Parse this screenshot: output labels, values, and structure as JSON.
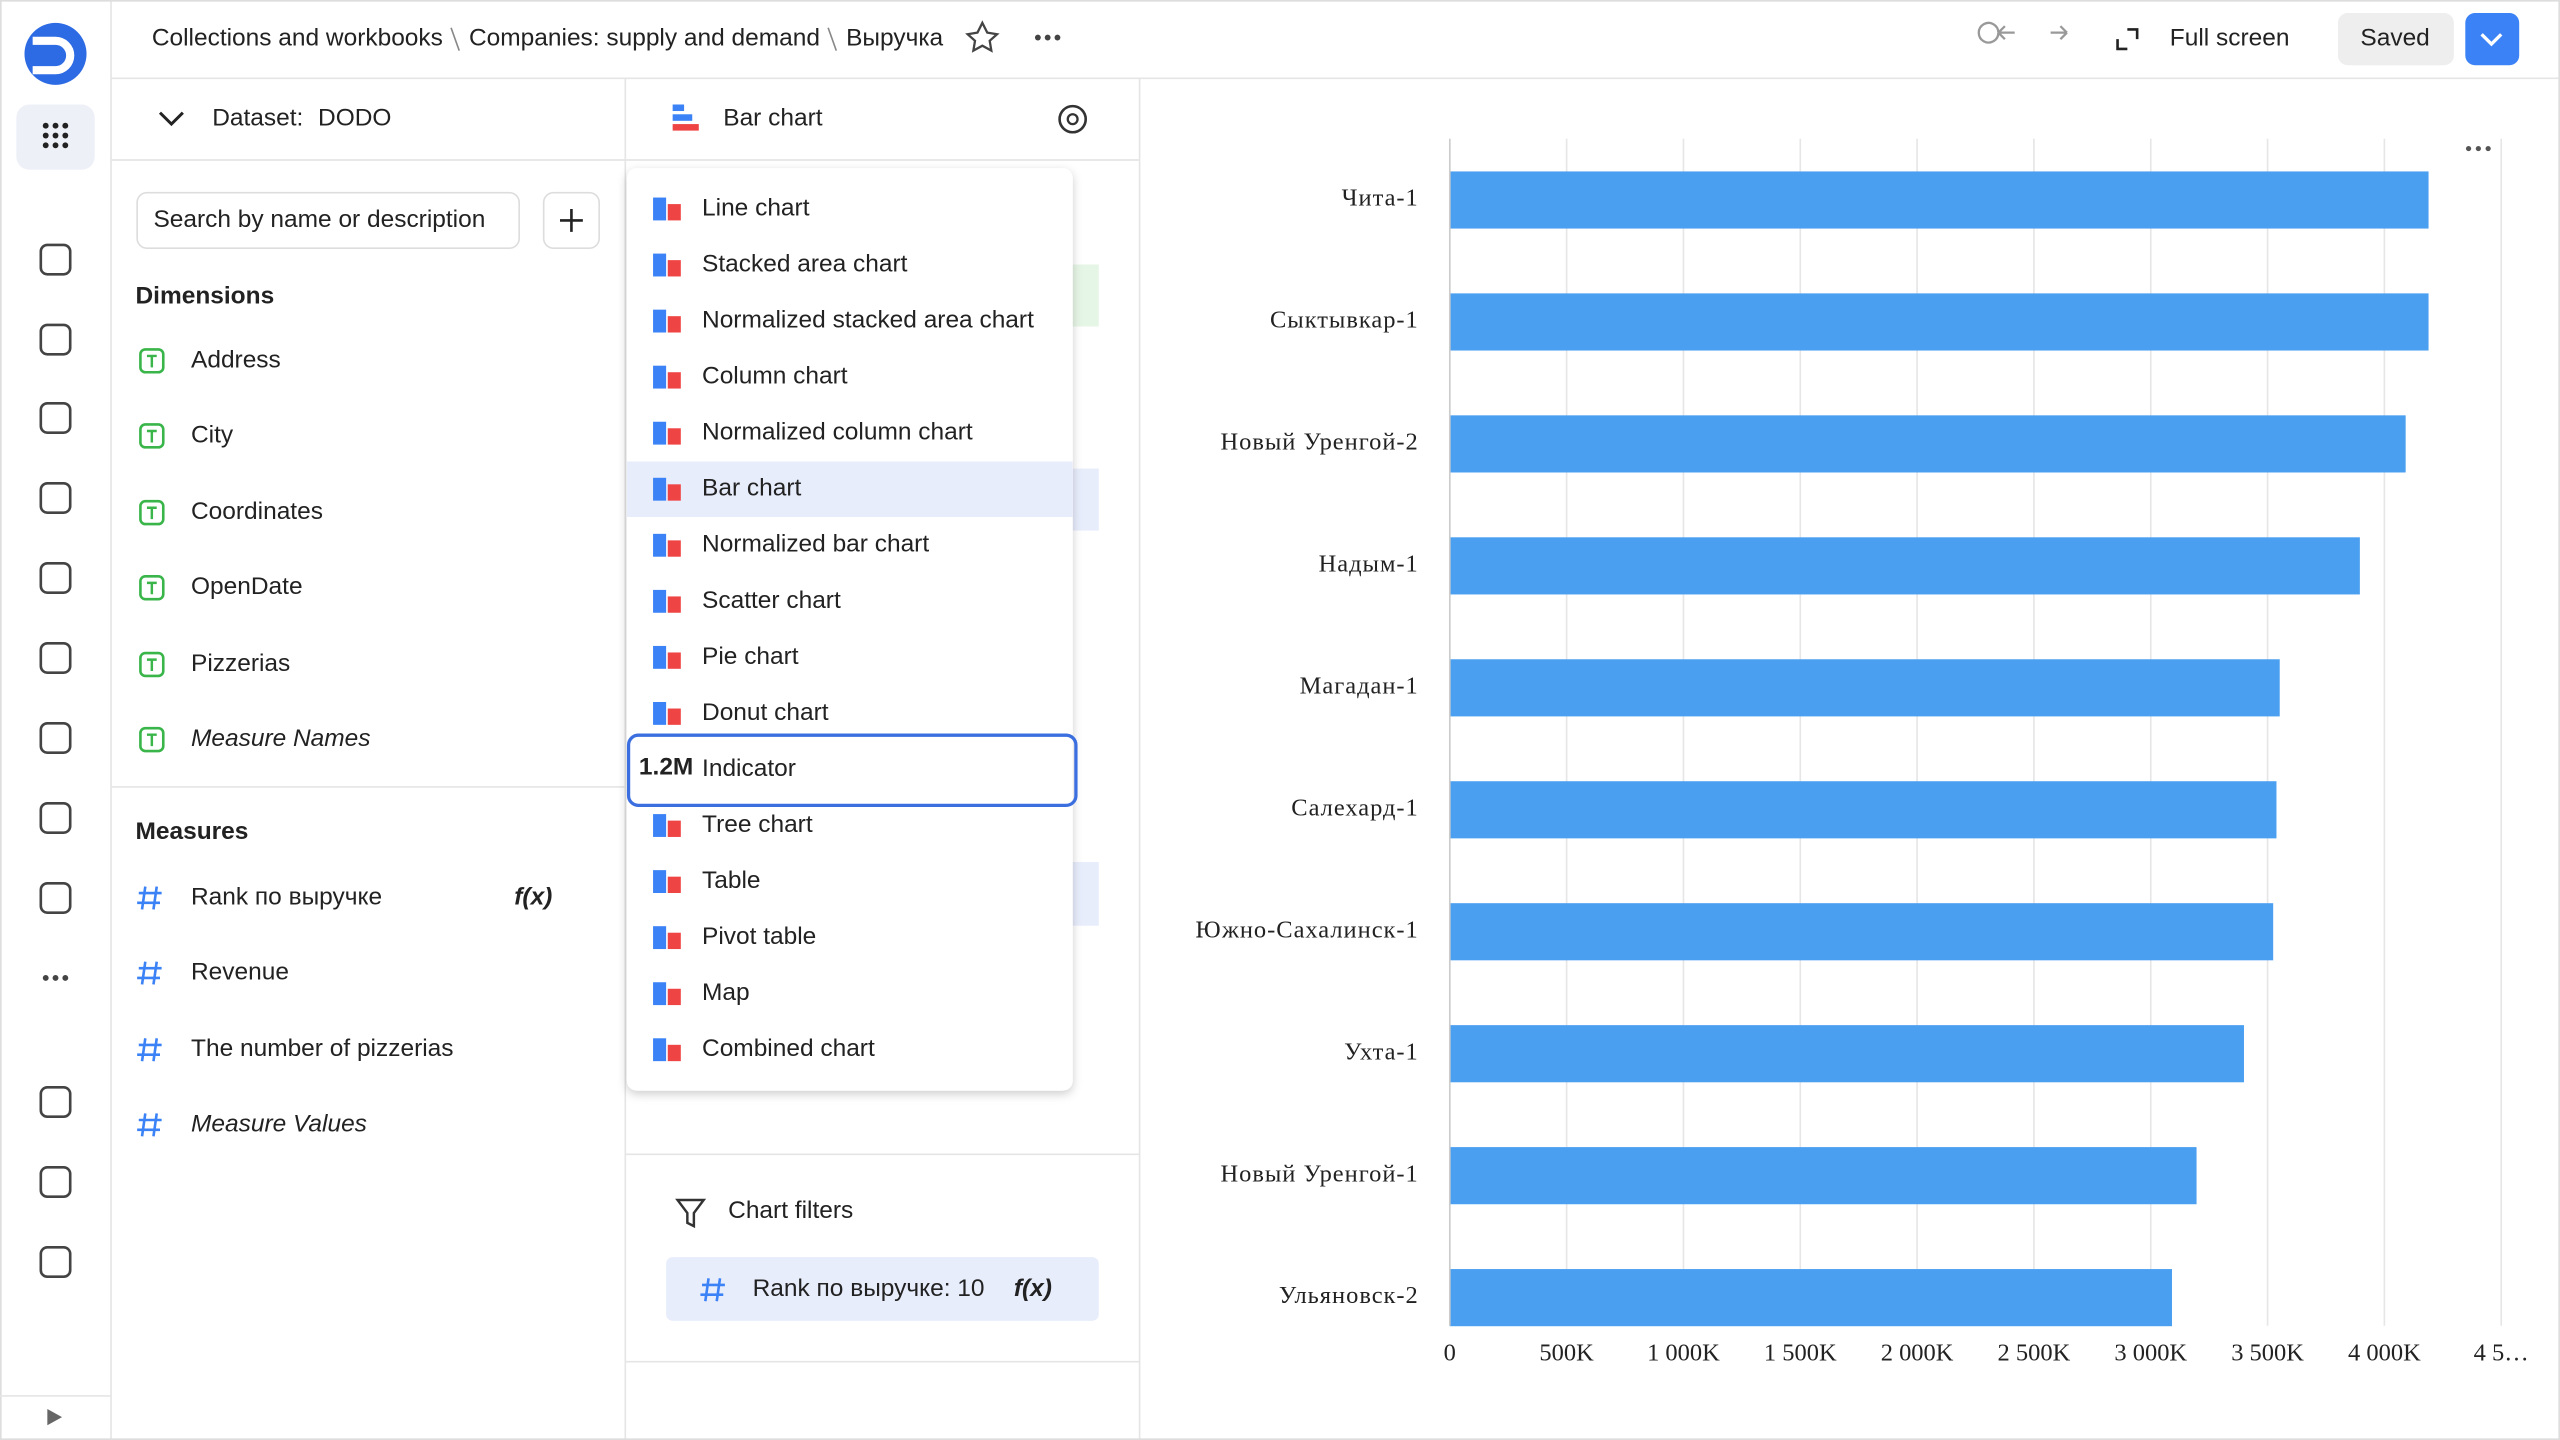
{
  "header": {
    "breadcrumbs": [
      "Collections and workbooks",
      "Companies: supply and demand",
      "Выручка"
    ],
    "full_screen": "Full screen",
    "saved": "Saved"
  },
  "dataset": {
    "label": "Dataset:",
    "name": "DODO"
  },
  "search_placeholder": "Search by name or description",
  "formula_badge": "f(x)",
  "dimensions": {
    "title": "Dimensions",
    "items": [
      "Address",
      "City",
      "Coordinates",
      "OpenDate",
      "Pizzerias",
      "Measure Names"
    ]
  },
  "measures": {
    "title": "Measures",
    "items": [
      "Rank по выручке",
      "Revenue",
      "The number of pizzerias",
      "Measure Values"
    ]
  },
  "visualization": {
    "current": "Bar chart",
    "menu": [
      "Line chart",
      "Stacked area chart",
      "Normalized stacked area chart",
      "Column chart",
      "Normalized column chart",
      "Bar chart",
      "Normalized bar chart",
      "Scatter chart",
      "Pie chart",
      "Donut chart",
      "Indicator",
      "Tree chart",
      "Table",
      "Pivot table",
      "Map",
      "Combined chart"
    ],
    "indicator_icon": "1.2M"
  },
  "chart_filters": {
    "title": "Chart filters",
    "items": [
      "Rank по выручке: 10"
    ]
  },
  "chart_data": {
    "type": "bar",
    "orientation": "horizontal",
    "color": "#4a9ff0",
    "grid": true,
    "categories": [
      "Чита-1",
      "Сыктывкар-1",
      "Новый Уренгой-2",
      "Надым-1",
      "Магадан-1",
      "Салехард-1",
      "Южно-Сахалинск-1",
      "Ухта-1",
      "Новый Уренгой-1",
      "Ульяновск-2"
    ],
    "values": [
      4189000,
      4189000,
      4091000,
      3895000,
      3552000,
      3538000,
      3524000,
      3399000,
      3196000,
      3091000
    ],
    "xlim": [
      0,
      4500000
    ],
    "xticks": [
      0,
      {
        "value": 500000,
        "label": "500K"
      },
      {
        "value": 1000000,
        "label": "1 000K"
      },
      {
        "value": 1500000,
        "label": "1 500K"
      },
      {
        "value": 2000000,
        "label": "2 000K"
      },
      {
        "value": 2500000,
        "label": "2 500K"
      },
      {
        "value": 3000000,
        "label": "3 000K"
      },
      {
        "value": 3500000,
        "label": "3 500K"
      },
      {
        "value": 4000000,
        "label": "4 000K"
      },
      {
        "value": 4500000,
        "label": "4 5…"
      }
    ]
  }
}
